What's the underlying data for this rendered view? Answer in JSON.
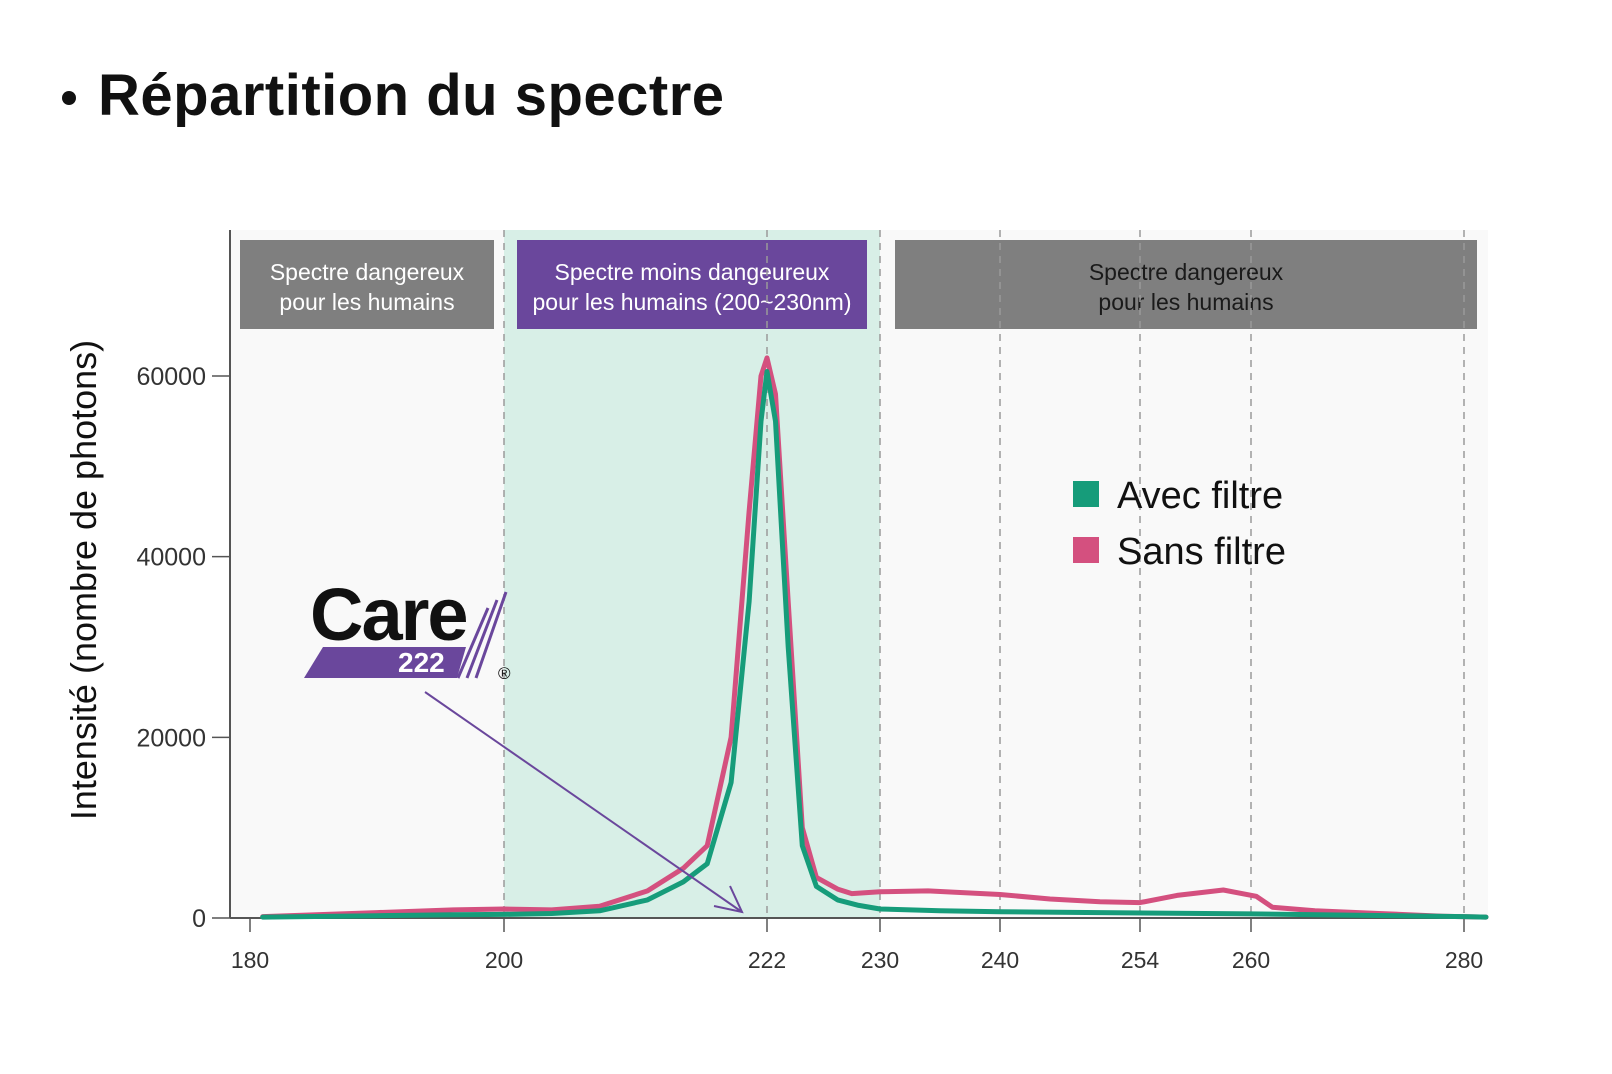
{
  "slide": {
    "bullet": "•",
    "title": "Répartition du spectre"
  },
  "logo": {
    "word": "Care",
    "number": "222",
    "registered": "®",
    "colors": {
      "text": "#111111",
      "band": "#6a479c"
    }
  },
  "colors": {
    "avec_filtre": "#169c7a",
    "sans_filtre": "#d4507f",
    "safe_zone": "#d8efe7",
    "danger_box": "#7f7f7f",
    "safe_box": "#6a479c",
    "plot_bg": "#f9f9f9",
    "arrow": "#6a479c"
  },
  "chart_data": {
    "type": "line",
    "title": "",
    "xlabel": "",
    "ylabel": "Intensité (nombre de photons)",
    "xticks": [
      180,
      200,
      222,
      230,
      240,
      254,
      260,
      280
    ],
    "yticks": [
      0,
      20000,
      40000,
      60000
    ],
    "xlim": [
      179,
      281
    ],
    "ylim": [
      0,
      77000
    ],
    "vertical_gridlines": [
      200,
      222,
      230,
      240,
      254,
      260,
      280
    ],
    "regions": [
      {
        "from": 179,
        "to": 200,
        "label_line1": "Spectre dangereux",
        "label_line2": "pour les humains",
        "kind": "danger"
      },
      {
        "from": 200,
        "to": 230,
        "label_line1": "Spectre moins dangeureux",
        "label_line2": "pour les humains (200~230nm)",
        "kind": "safe"
      },
      {
        "from": 230,
        "to": 281,
        "label_line1": "Spectre dangereux",
        "label_line2": "pour les humains",
        "kind": "danger"
      }
    ],
    "legend": {
      "position": "right",
      "entries": [
        {
          "label": "Avec filtre",
          "series": "avec_filtre"
        },
        {
          "label": "Sans filtre",
          "series": "sans_filtre"
        }
      ]
    },
    "series": [
      {
        "name": "Sans filtre",
        "key": "sans_filtre",
        "points": [
          [
            181,
            150
          ],
          [
            190,
            600
          ],
          [
            196,
            900
          ],
          [
            200,
            1000
          ],
          [
            204,
            900
          ],
          [
            208,
            1300
          ],
          [
            212,
            3000
          ],
          [
            215,
            5500
          ],
          [
            217,
            8000
          ],
          [
            219,
            20000
          ],
          [
            220.5,
            45000
          ],
          [
            221.5,
            60000
          ],
          [
            222,
            62000
          ],
          [
            222.6,
            58000
          ],
          [
            223.5,
            35000
          ],
          [
            224.5,
            10000
          ],
          [
            225.5,
            4500
          ],
          [
            227,
            3200
          ],
          [
            228,
            2700
          ],
          [
            230,
            2900
          ],
          [
            234,
            3000
          ],
          [
            240,
            2600
          ],
          [
            245,
            2100
          ],
          [
            250,
            1800
          ],
          [
            254,
            1700
          ],
          [
            256,
            2500
          ],
          [
            258.5,
            3100
          ],
          [
            260.5,
            2400
          ],
          [
            262,
            1200
          ],
          [
            266,
            800
          ],
          [
            272,
            500
          ],
          [
            278,
            200
          ],
          [
            282,
            100
          ]
        ]
      },
      {
        "name": "Avec filtre",
        "key": "avec_filtre",
        "points": [
          [
            181,
            100
          ],
          [
            190,
            250
          ],
          [
            196,
            350
          ],
          [
            200,
            400
          ],
          [
            204,
            500
          ],
          [
            208,
            800
          ],
          [
            212,
            2000
          ],
          [
            215,
            4000
          ],
          [
            217,
            6000
          ],
          [
            219,
            15000
          ],
          [
            220.5,
            35000
          ],
          [
            221.5,
            55000
          ],
          [
            222,
            60500
          ],
          [
            222.6,
            55000
          ],
          [
            223.5,
            30000
          ],
          [
            224.5,
            8000
          ],
          [
            225.5,
            3500
          ],
          [
            227,
            2000
          ],
          [
            228.5,
            1400
          ],
          [
            230,
            1000
          ],
          [
            235,
            800
          ],
          [
            240,
            700
          ],
          [
            250,
            600
          ],
          [
            260,
            450
          ],
          [
            270,
            300
          ],
          [
            280,
            150
          ],
          [
            282,
            100
          ]
        ]
      }
    ]
  }
}
